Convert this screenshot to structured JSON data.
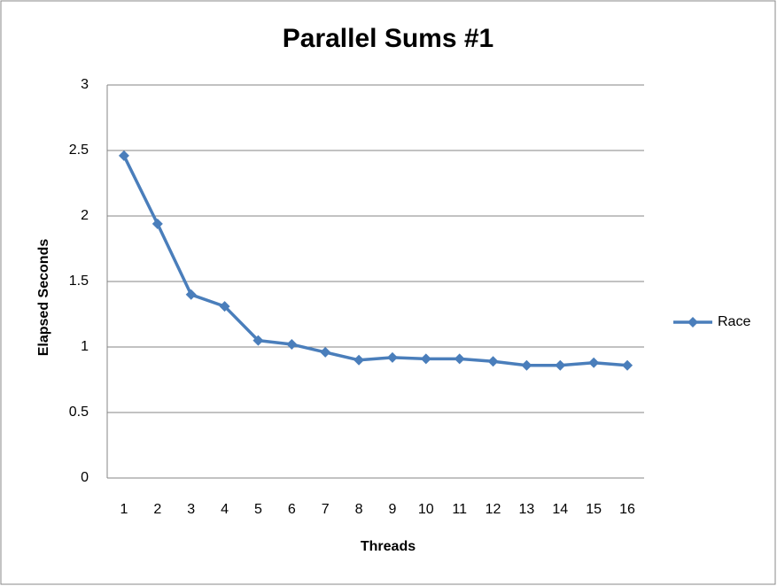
{
  "chart_data": {
    "type": "line",
    "title": "Parallel Sums #1",
    "x_label": "Threads",
    "y_label": "Elapsed Seconds",
    "categories": [
      "1",
      "2",
      "3",
      "4",
      "5",
      "6",
      "7",
      "8",
      "9",
      "10",
      "11",
      "12",
      "13",
      "14",
      "15",
      "16"
    ],
    "series": [
      {
        "name": "Race",
        "color": "#4a7ebb",
        "values": [
          2.46,
          1.94,
          1.4,
          1.31,
          1.05,
          1.02,
          0.96,
          0.9,
          0.92,
          0.91,
          0.91,
          0.89,
          0.86,
          0.86,
          0.88,
          0.86
        ]
      }
    ],
    "ylim": [
      0,
      3
    ],
    "yticks": [
      0,
      0.5,
      1,
      1.5,
      2,
      2.5,
      3
    ],
    "grid": true,
    "legend": "right"
  }
}
